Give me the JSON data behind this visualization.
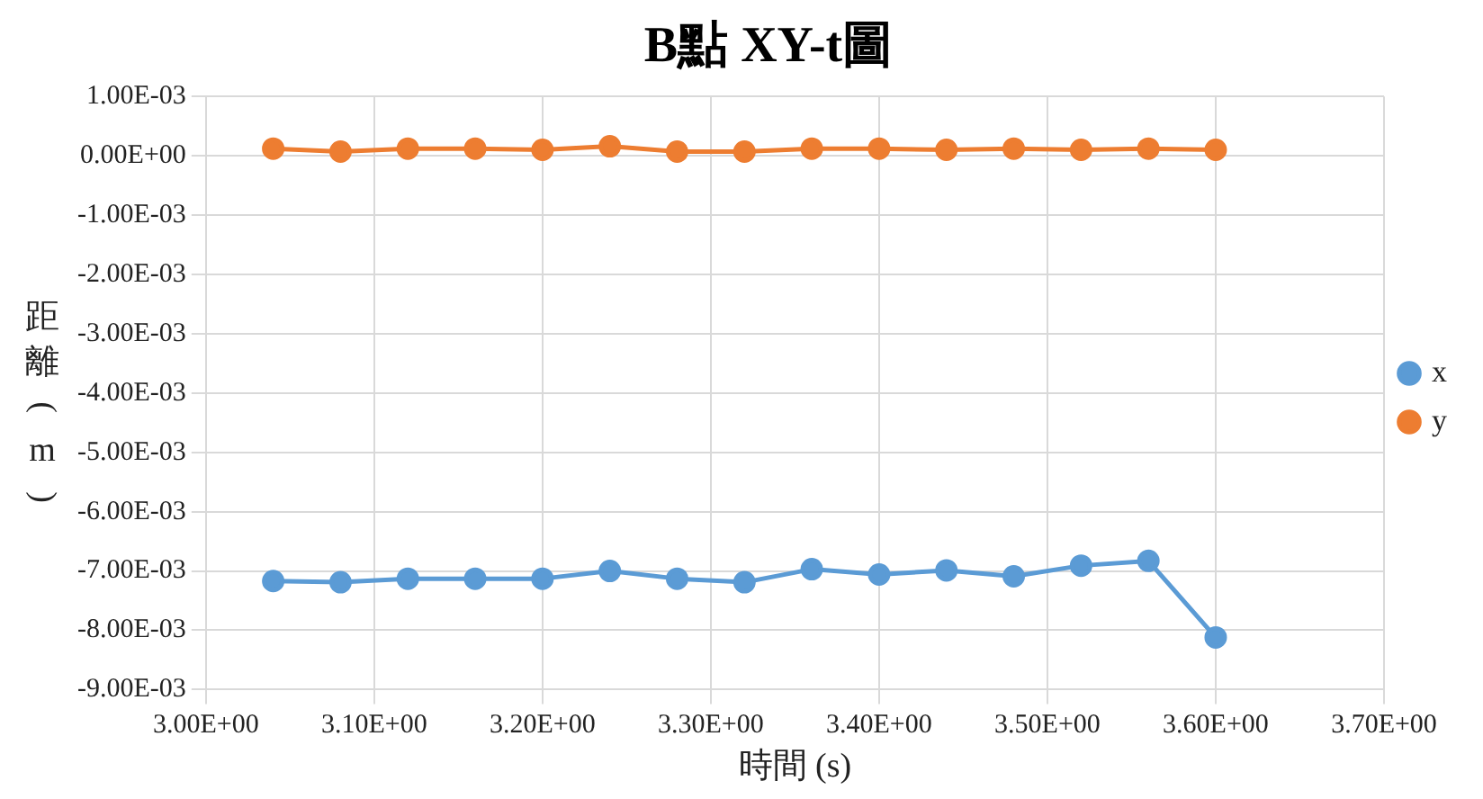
{
  "chart_data": {
    "type": "line",
    "title": "B點 XY-t圖",
    "xlabel": "時間 (s)",
    "ylabel": "距離(m)",
    "x": [
      3.04,
      3.08,
      3.12,
      3.16,
      3.2,
      3.24,
      3.28,
      3.32,
      3.36,
      3.4,
      3.44,
      3.48,
      3.52,
      3.56,
      3.6
    ],
    "series": [
      {
        "name": "x",
        "color": "#5b9bd5",
        "values": [
          -0.00717,
          -0.00719,
          -0.00713,
          -0.00713,
          -0.00713,
          -0.007,
          -0.00713,
          -0.00719,
          -0.00697,
          -0.00706,
          -0.00699,
          -0.00709,
          -0.00691,
          -0.00683,
          -0.00812
        ]
      },
      {
        "name": "y",
        "color": "#ed7d31",
        "values": [
          0.00012,
          7e-05,
          0.00012,
          0.00012,
          0.0001,
          0.00016,
          7e-05,
          7e-05,
          0.00012,
          0.00012,
          0.0001,
          0.00012,
          0.0001,
          0.00012,
          0.0001
        ]
      }
    ],
    "xlim": [
      3.0,
      3.7
    ],
    "xticks": [
      {
        "value": 3.0,
        "label": "3.00E+00"
      },
      {
        "value": 3.1,
        "label": "3.10E+00"
      },
      {
        "value": 3.2,
        "label": "3.20E+00"
      },
      {
        "value": 3.3,
        "label": "3.30E+00"
      },
      {
        "value": 3.4,
        "label": "3.40E+00"
      },
      {
        "value": 3.5,
        "label": "3.50E+00"
      },
      {
        "value": 3.6,
        "label": "3.60E+00"
      },
      {
        "value": 3.7,
        "label": "3.70E+00"
      }
    ],
    "ylim": [
      -0.009,
      0.001
    ],
    "yticks": [
      {
        "value": 0.001,
        "label": "1.00E-03"
      },
      {
        "value": 0,
        "label": "0.00E+00"
      },
      {
        "value": -0.001,
        "label": "-1.00E-03"
      },
      {
        "value": -0.002,
        "label": "-2.00E-03"
      },
      {
        "value": -0.003,
        "label": "-3.00E-03"
      },
      {
        "value": -0.004,
        "label": "-4.00E-03"
      },
      {
        "value": -0.005,
        "label": "-5.00E-03"
      },
      {
        "value": -0.006,
        "label": "-6.00E-03"
      },
      {
        "value": -0.007,
        "label": "-7.00E-03"
      },
      {
        "value": -0.008,
        "label": "-8.00E-03"
      },
      {
        "value": -0.009,
        "label": "-9.00E-03"
      }
    ],
    "grid": true,
    "legend": "right",
    "marker": "circle",
    "line_style": "solid"
  }
}
